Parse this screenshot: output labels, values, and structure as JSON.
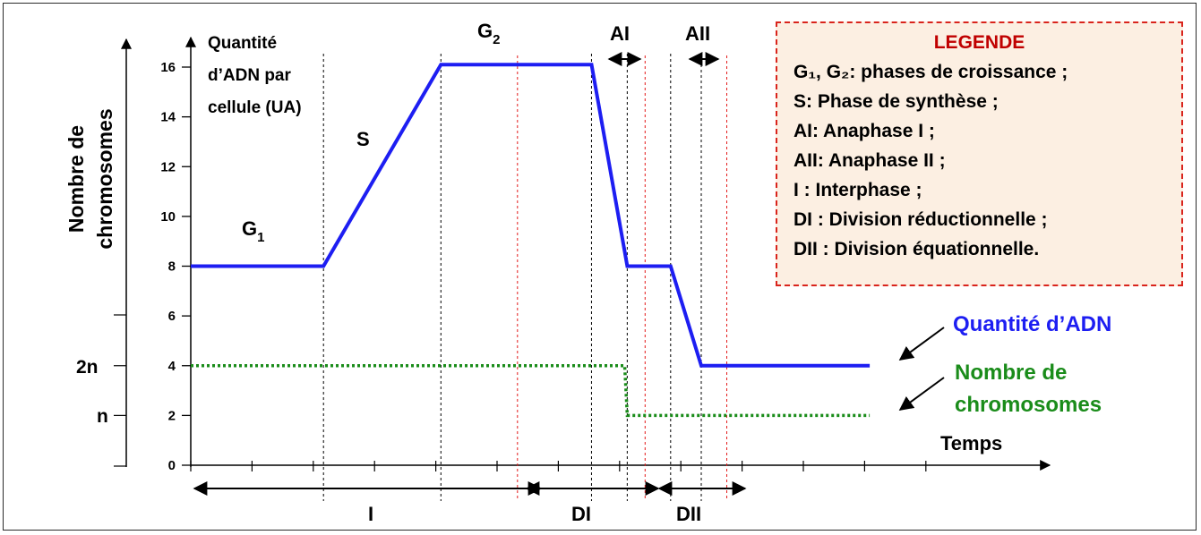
{
  "chart_data": {
    "type": "line",
    "y_axis_label_inner": [
      "Quantité",
      "d’ADN par",
      "cellule (UA)"
    ],
    "y_axis_label_outer": [
      "Nombre de",
      "chromosomes"
    ],
    "y_ticks": [
      0,
      2,
      4,
      6,
      8,
      10,
      12,
      14,
      16
    ],
    "y_extra_labels": [
      {
        "label": "2n",
        "value": 4
      },
      {
        "label": "n",
        "value": 2
      }
    ],
    "ylim": [
      0,
      17
    ],
    "xlabel": "Temps",
    "series": [
      {
        "name": "Quantité d’ADN",
        "color": "#1d1ef2",
        "style": "solid",
        "points": [
          [
            0,
            8
          ],
          [
            5.2,
            8
          ],
          [
            9.8,
            16.1
          ],
          [
            15.7,
            16.1
          ],
          [
            17.1,
            8
          ],
          [
            18.8,
            8
          ],
          [
            20,
            4
          ],
          [
            26.6,
            4
          ]
        ]
      },
      {
        "name": "Nombre de chromosomes",
        "color": "#1a8c1a",
        "style": "dotted",
        "points": [
          [
            0,
            4
          ],
          [
            17,
            4
          ],
          [
            17.1,
            2
          ],
          [
            26.6,
            2
          ]
        ]
      }
    ],
    "xlim": [
      0,
      32
    ],
    "black_dashed_x": [
      5.2,
      9.8,
      15.7,
      17.1,
      18.8,
      20
    ],
    "red_dashed_x": [
      12.8,
      17.8,
      21.0
    ],
    "phase_labels": [
      {
        "id": "g1",
        "text": "G",
        "sub": "1"
      },
      {
        "id": "s",
        "text": "S"
      },
      {
        "id": "g2",
        "text": "G",
        "sub": "2"
      },
      {
        "id": "ai",
        "text": "AI"
      },
      {
        "id": "aii",
        "text": "AII"
      }
    ],
    "period_labels": [
      "I",
      "DI",
      "DII"
    ],
    "line_labels": [
      {
        "text": "Quantité d’ADN",
        "color": "#1d1ef2"
      },
      {
        "text": "Nombre de",
        "color": "#1a8c1a"
      },
      {
        "text": "chromosomes",
        "color": "#1a8c1a"
      }
    ]
  },
  "legend": {
    "title": "LEGENDE",
    "items": [
      "G₁, G₂: phases de croissance ;",
      "S: Phase de synthèse ;",
      "AI: Anaphase I ;",
      "AII: Anaphase II ;",
      "I : Interphase ;",
      "DI : Division réductionnelle ;",
      "DII : Division équationnelle."
    ]
  }
}
